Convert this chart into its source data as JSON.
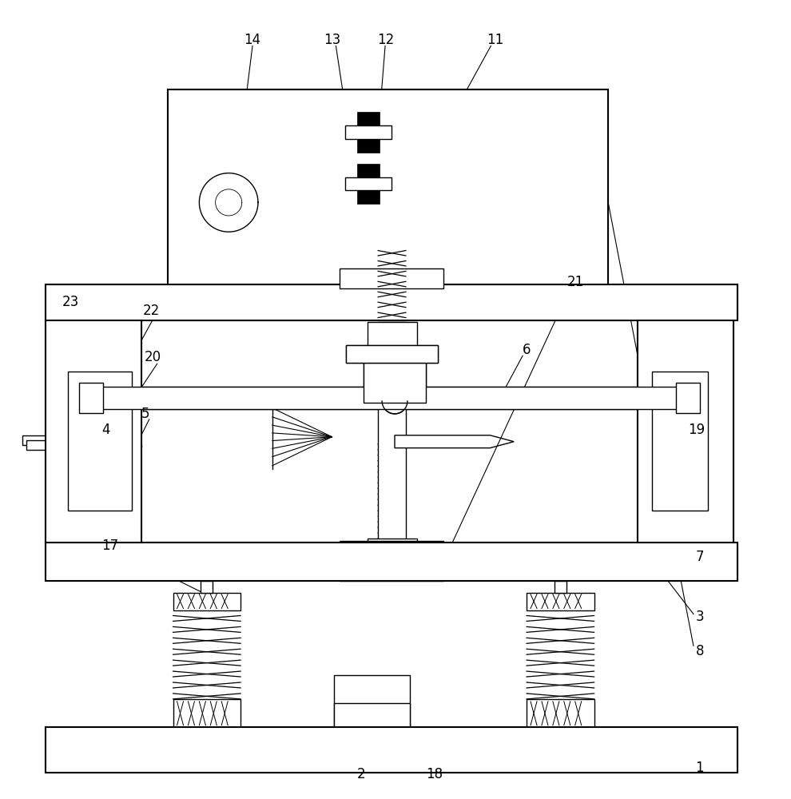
{
  "bg_color": "#ffffff",
  "lc": "#000000",
  "lw": 1.0,
  "lw2": 1.5,
  "fig_w": 9.9,
  "fig_h": 10.0,
  "dpi": 100
}
